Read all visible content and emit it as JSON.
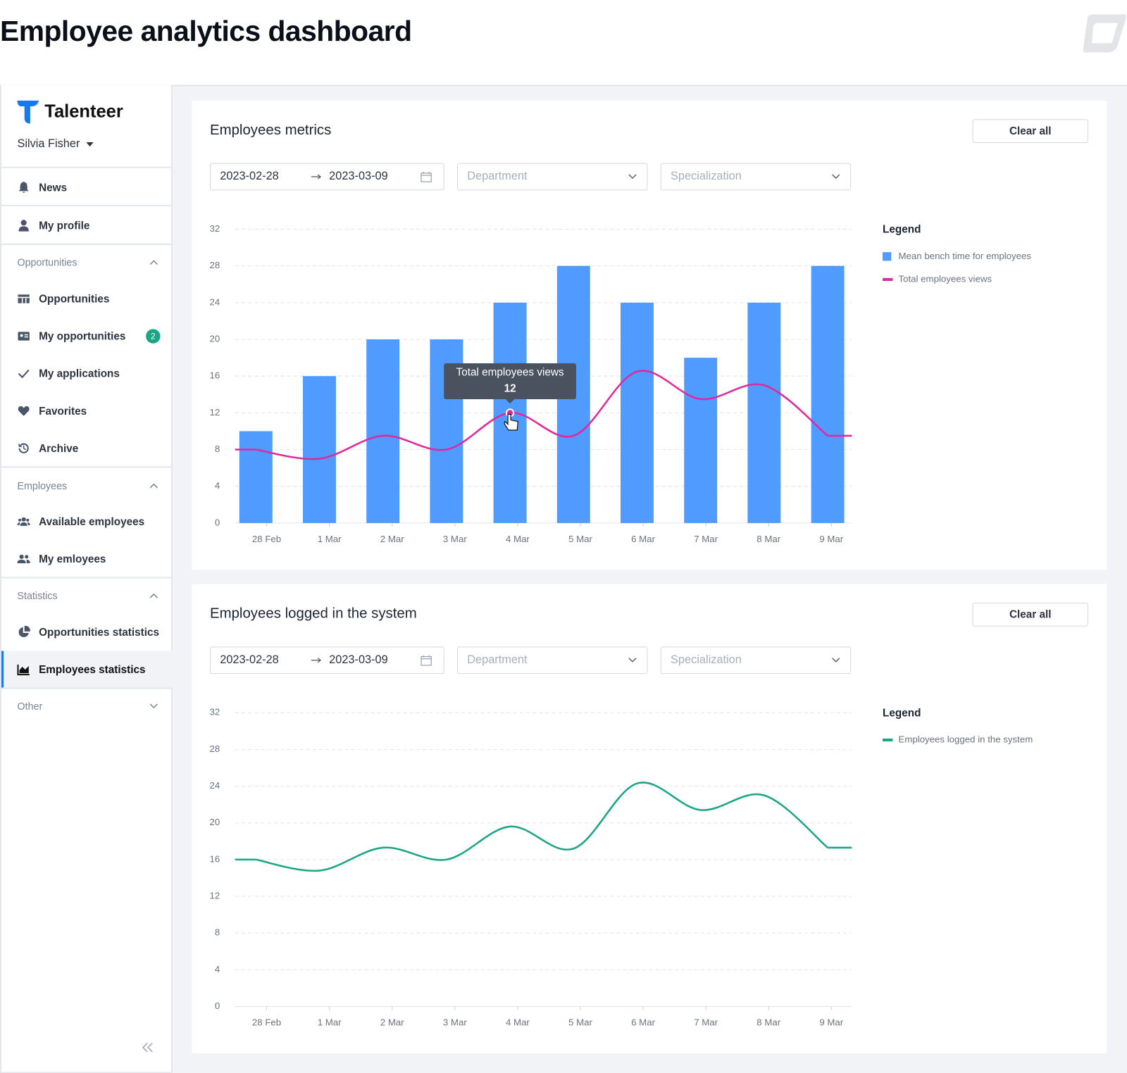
{
  "header": {
    "title": "Employee analytics dashboard"
  },
  "sidebar": {
    "brand": "Talenteer",
    "user": "Silvia Fisher",
    "top": [
      "News",
      "My profile"
    ],
    "sections": [
      {
        "title": "Opportunities",
        "items": [
          "Opportunities",
          "My opportunities",
          "My applications",
          "Favorites",
          "Archive"
        ]
      },
      {
        "title": "Employees",
        "items": [
          "Available employees",
          "My emloyees"
        ]
      },
      {
        "title": "Statistics",
        "items": [
          "Opportunities statistics",
          "Employees statistics"
        ]
      },
      {
        "title": "Other"
      }
    ],
    "badge": 2
  },
  "chart_data": [
    {
      "type": "bar",
      "title": "Employees metrics",
      "button": "Clear all",
      "filters": {
        "date_from": "2023-02-28",
        "date_to": "2023-03-09",
        "department": "Department",
        "specialization": "Specialization"
      },
      "legend_title": "Legend",
      "categories": [
        "28 Feb",
        "1 Mar",
        "2 Mar",
        "3 Mar",
        "4 Mar",
        "5 Mar",
        "6 Mar",
        "7 Mar",
        "8 Mar",
        "9 Mar"
      ],
      "series": [
        {
          "name": "Mean bench time for employees",
          "type": "bar",
          "color": "#4f9bff",
          "values": [
            10,
            16,
            20,
            20,
            24,
            28,
            24,
            18,
            24,
            28
          ]
        },
        {
          "name": "Total employees views",
          "type": "line",
          "color": "#e0289f",
          "values": [
            8,
            7,
            9.5,
            8,
            12,
            9.5,
            16.5,
            13.5,
            15,
            9.5
          ]
        }
      ],
      "ylim": [
        0,
        32
      ],
      "yticks": [
        0,
        4,
        8,
        12,
        16,
        20,
        24,
        28,
        32
      ],
      "grid": true,
      "tooltip_index": 4
    },
    {
      "type": "line",
      "title": "Employees logged in the system",
      "button": "Clear all",
      "filters": {
        "date_from": "2023-02-28",
        "date_to": "2023-03-09",
        "department": "Department",
        "specialization": "Specialization"
      },
      "legend_title": "Legend",
      "categories": [
        "28 Feb",
        "1 Mar",
        "2 Mar",
        "3 Mar",
        "4 Mar",
        "5 Mar",
        "6 Mar",
        "7 Mar",
        "8 Mar",
        "9 Mar"
      ],
      "series": [
        {
          "name": "Employees logged in the system",
          "type": "line",
          "color": "#1aa685",
          "values": [
            16,
            14.8,
            17.3,
            16,
            19.6,
            17.2,
            24.3,
            21.4,
            23,
            17.3
          ]
        }
      ],
      "ylim": [
        0,
        32
      ],
      "yticks": [
        0,
        4,
        8,
        12,
        16,
        20,
        24,
        28,
        32
      ],
      "grid": true
    }
  ]
}
